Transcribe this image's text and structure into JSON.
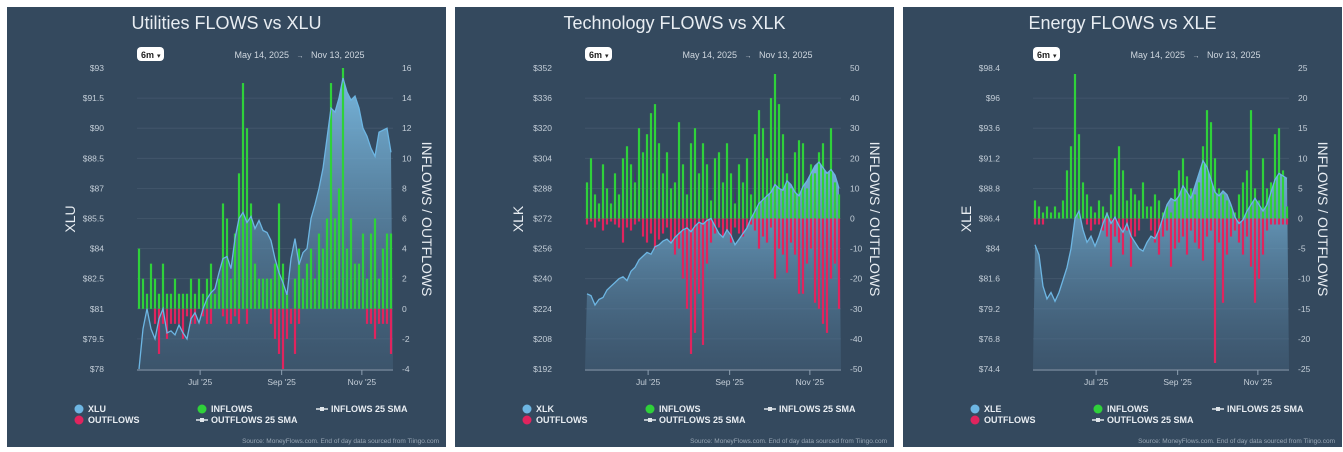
{
  "colors": {
    "background": "#34495e",
    "grid": "#44586d",
    "inflows": "#2fd13a",
    "outflows": "#e0245e",
    "price": "#6db6e3",
    "text": "#e8edf2",
    "muted": "#9aa8b6"
  },
  "legend": {
    "inflows": "INFLOWS",
    "outflows": "OUTFLOWS",
    "inflows_sma": "INFLOWS 25 SMA",
    "outflows_sma": "OUTFLOWS 25 SMA"
  },
  "range_button": "6m",
  "date_start": "May 14, 2025",
  "date_end": "Nov 13, 2025",
  "date_separator": "→",
  "source": "Source: MoneyFlows.com. End of day data sourced from Tiingo.com",
  "right_axis_label": "INFLOWS / OUTFLOWS",
  "chart_data": [
    {
      "type": "bar+area",
      "title": "Utilities FLOWS vs XLU",
      "ticker": "XLU",
      "ylabel_left": "XLU",
      "ylabel_right": "INFLOWS / OUTFLOWS",
      "x_start": "2025-05-14",
      "x_end": "2025-11-13",
      "x_ticks": [
        {
          "label": "Jul '25",
          "date": "2025-07-01"
        },
        {
          "label": "Sep '25",
          "date": "2025-09-01"
        },
        {
          "label": "Nov '25",
          "date": "2025-11-01"
        }
      ],
      "ylim_left": [
        78,
        93
      ],
      "yticks_left": [
        "$93",
        "$91.5",
        "$90",
        "$88.5",
        "$87",
        "$85.5",
        "$84",
        "$82.5",
        "$81",
        "$79.5",
        "$78"
      ],
      "ylim_right": [
        -4,
        16
      ],
      "yticks_right": [
        "16",
        "14",
        "12",
        "10",
        "8",
        "6",
        "4",
        "2",
        "0",
        "-2",
        "-4"
      ],
      "grid": true,
      "legend_position": "bottom",
      "price": [
        78,
        80,
        81,
        80,
        79.5,
        80.5,
        81,
        79.8,
        79.9,
        79.7,
        80.2,
        79.8,
        79.5,
        80.5,
        80.8,
        80.3,
        81,
        81.5,
        81.8,
        82,
        82.8,
        83.5,
        83.6,
        83,
        84.5,
        85.5,
        85.8,
        85.3,
        85.6,
        85,
        85.4,
        84.9,
        84.8,
        84.4,
        83.5,
        82.8,
        82.3,
        81.7,
        83.5,
        84.5,
        83.2,
        83.8,
        84,
        85.5,
        86.2,
        87,
        88,
        89.5,
        91,
        90.8,
        91.5,
        92.5,
        91.8,
        91.4,
        91.6,
        91,
        90,
        89.6,
        89,
        88.6,
        89.8,
        89.9,
        90,
        88.8
      ],
      "inflows": [
        4,
        2,
        1,
        3,
        2,
        1,
        3,
        1,
        1,
        2,
        1,
        1,
        1,
        2,
        1,
        2,
        1,
        2,
        3,
        1,
        2,
        7,
        6,
        2,
        5,
        9,
        15,
        12,
        7,
        3,
        2,
        2,
        2,
        2,
        3,
        7,
        3,
        1,
        0,
        2,
        4,
        2,
        3,
        4,
        2,
        5,
        4,
        6,
        15,
        6,
        8,
        16,
        4,
        6,
        3,
        3,
        5,
        2,
        5,
        6,
        2,
        4,
        5,
        5
      ],
      "outflows": [
        0,
        0,
        0,
        0,
        -1,
        -3,
        -1,
        -2,
        -1,
        -1,
        -1,
        -2,
        -0.5,
        -1,
        -1,
        0,
        -0.5,
        -1,
        -1,
        0,
        0,
        -0.5,
        -1,
        -1,
        -0.5,
        -1,
        0,
        -1,
        0,
        0,
        0,
        0,
        0,
        -1,
        -2,
        -3,
        -4,
        -2,
        -1,
        -3,
        -1,
        0,
        0,
        0,
        0,
        0,
        0,
        0,
        0,
        0,
        0,
        0,
        0,
        0,
        0,
        0,
        0,
        -1,
        -1,
        -2,
        -1,
        -1,
        -1,
        -3
      ]
    },
    {
      "type": "bar+area",
      "title": "Technology FLOWS vs XLK",
      "ticker": "XLK",
      "ylabel_left": "XLK",
      "ylabel_right": "INFLOWS / OUTFLOWS",
      "x_start": "2025-05-14",
      "x_end": "2025-11-13",
      "x_ticks": [
        {
          "label": "Jul '25",
          "date": "2025-07-01"
        },
        {
          "label": "Sep '25",
          "date": "2025-09-01"
        },
        {
          "label": "Nov '25",
          "date": "2025-11-01"
        }
      ],
      "ylim_left": [
        192,
        352
      ],
      "yticks_left": [
        "$352",
        "$336",
        "$320",
        "$304",
        "$288",
        "$272",
        "$256",
        "$240",
        "$224",
        "$208",
        "$192"
      ],
      "ylim_right": [
        -50,
        50
      ],
      "yticks_right": [
        "50",
        "40",
        "30",
        "20",
        "10",
        "0",
        "-10",
        "-20",
        "-30",
        "-40",
        "-50"
      ],
      "grid": true,
      "legend_position": "bottom",
      "price": [
        232,
        231,
        226,
        229,
        230,
        234,
        236,
        238,
        240,
        241,
        239,
        244,
        246,
        250,
        252,
        254,
        253,
        257,
        258,
        260,
        261,
        259,
        262,
        264,
        266,
        267,
        265,
        268,
        270,
        269,
        271,
        272,
        268,
        264,
        262,
        266,
        263,
        258,
        261,
        264,
        267,
        272,
        276,
        280,
        282,
        284,
        286,
        290,
        288,
        287,
        292,
        290,
        286,
        284,
        289,
        292,
        296,
        300,
        302,
        299,
        296,
        298,
        295,
        288
      ],
      "inflows": [
        12,
        20,
        8,
        5,
        18,
        10,
        5,
        15,
        8,
        20,
        24,
        18,
        12,
        30,
        22,
        28,
        35,
        38,
        25,
        15,
        22,
        10,
        12,
        32,
        18,
        8,
        25,
        30,
        15,
        25,
        18,
        6,
        20,
        22,
        12,
        25,
        15,
        5,
        18,
        12,
        20,
        8,
        28,
        36,
        30,
        20,
        40,
        48,
        38,
        28,
        15,
        10,
        22,
        26,
        25,
        10,
        18,
        15,
        22,
        25,
        15,
        30,
        12,
        8
      ],
      "outflows": [
        -2,
        -1,
        -3,
        -1,
        -4,
        -2,
        -1,
        -2,
        -3,
        -8,
        -3,
        -4,
        -2,
        -1,
        -6,
        -8,
        -5,
        -10,
        -7,
        -5,
        -3,
        -8,
        -12,
        -10,
        -20,
        -30,
        -45,
        -38,
        -25,
        -42,
        -15,
        -8,
        -5,
        -3,
        -6,
        -4,
        -8,
        -3,
        -5,
        -6,
        -3,
        -2,
        -4,
        -10,
        -6,
        -8,
        -3,
        -20,
        -10,
        -12,
        -18,
        -8,
        -12,
        -25,
        -25,
        -15,
        -10,
        -28,
        -30,
        -35,
        -38,
        -20,
        -15,
        -30
      ]
    },
    {
      "type": "bar+area",
      "title": "Energy FLOWS vs XLE",
      "ticker": "XLE",
      "ylabel_left": "XLE",
      "ylabel_right": "INFLOWS / OUTFLOWS",
      "x_start": "2025-05-14",
      "x_end": "2025-11-13",
      "x_ticks": [
        {
          "label": "Jul '25",
          "date": "2025-07-01"
        },
        {
          "label": "Sep '25",
          "date": "2025-09-01"
        },
        {
          "label": "Nov '25",
          "date": "2025-11-01"
        }
      ],
      "ylim_left": [
        74.4,
        98.4
      ],
      "yticks_left": [
        "$98.4",
        "$96",
        "$93.6",
        "$91.2",
        "$88.8",
        "$86.4",
        "$84",
        "$81.6",
        "$79.2",
        "$76.8",
        "$74.4"
      ],
      "ylim_right": [
        -25,
        25
      ],
      "yticks_right": [
        "25",
        "20",
        "15",
        "10",
        "5",
        "0",
        "-5",
        "-10",
        "-15",
        "-20",
        "-25"
      ],
      "grid": true,
      "legend_position": "bottom",
      "price": [
        84.3,
        83.5,
        81,
        80,
        80.5,
        79.8,
        80.5,
        81.5,
        82.5,
        84,
        86.4,
        87,
        85.5,
        84.5,
        85,
        84.2,
        85,
        86,
        86.8,
        86,
        86.5,
        85.8,
        85.3,
        86,
        85,
        84.5,
        84,
        83.8,
        84.5,
        85,
        84.8,
        85.5,
        86.5,
        87.5,
        88,
        87.8,
        88.2,
        89,
        88.5,
        88,
        89,
        90,
        91,
        90.5,
        89.5,
        88.5,
        88.2,
        88.6,
        88.3,
        87.5,
        86.5,
        86,
        86.3,
        87,
        87.5,
        88,
        87.5,
        87,
        87.5,
        88.5,
        89.5,
        90,
        89.8,
        89.6
      ],
      "inflows": [
        3,
        2,
        1,
        2,
        1,
        2,
        1,
        3,
        8,
        12,
        24,
        14,
        6,
        4,
        2,
        1,
        3,
        2,
        1,
        4,
        10,
        12,
        8,
        3,
        5,
        4,
        3,
        6,
        2,
        2,
        4,
        3,
        1,
        2,
        1,
        5,
        8,
        10,
        7,
        5,
        4,
        6,
        12,
        18,
        16,
        10,
        5,
        4,
        3,
        2,
        1,
        4,
        6,
        8,
        18,
        5,
        3,
        10,
        5,
        6,
        14,
        15,
        8,
        2
      ],
      "outflows": [
        -1,
        -1,
        -1,
        0,
        0,
        0,
        0,
        0,
        0,
        0,
        0,
        0,
        0,
        -1,
        -2,
        -1,
        -1,
        -2,
        -3,
        -8,
        -3,
        -4,
        -6,
        -2,
        -8,
        -3,
        -2,
        0,
        0,
        -2,
        -4,
        -6,
        -3,
        -2,
        -8,
        -5,
        -4,
        -3,
        -6,
        -2,
        -4,
        -5,
        -7,
        -3,
        -2,
        -24,
        -4,
        -14,
        -6,
        -3,
        -2,
        -4,
        -6,
        -3,
        -8,
        -14,
        -10,
        -6,
        -2,
        -1,
        -1,
        -1,
        -1,
        -1
      ]
    }
  ]
}
